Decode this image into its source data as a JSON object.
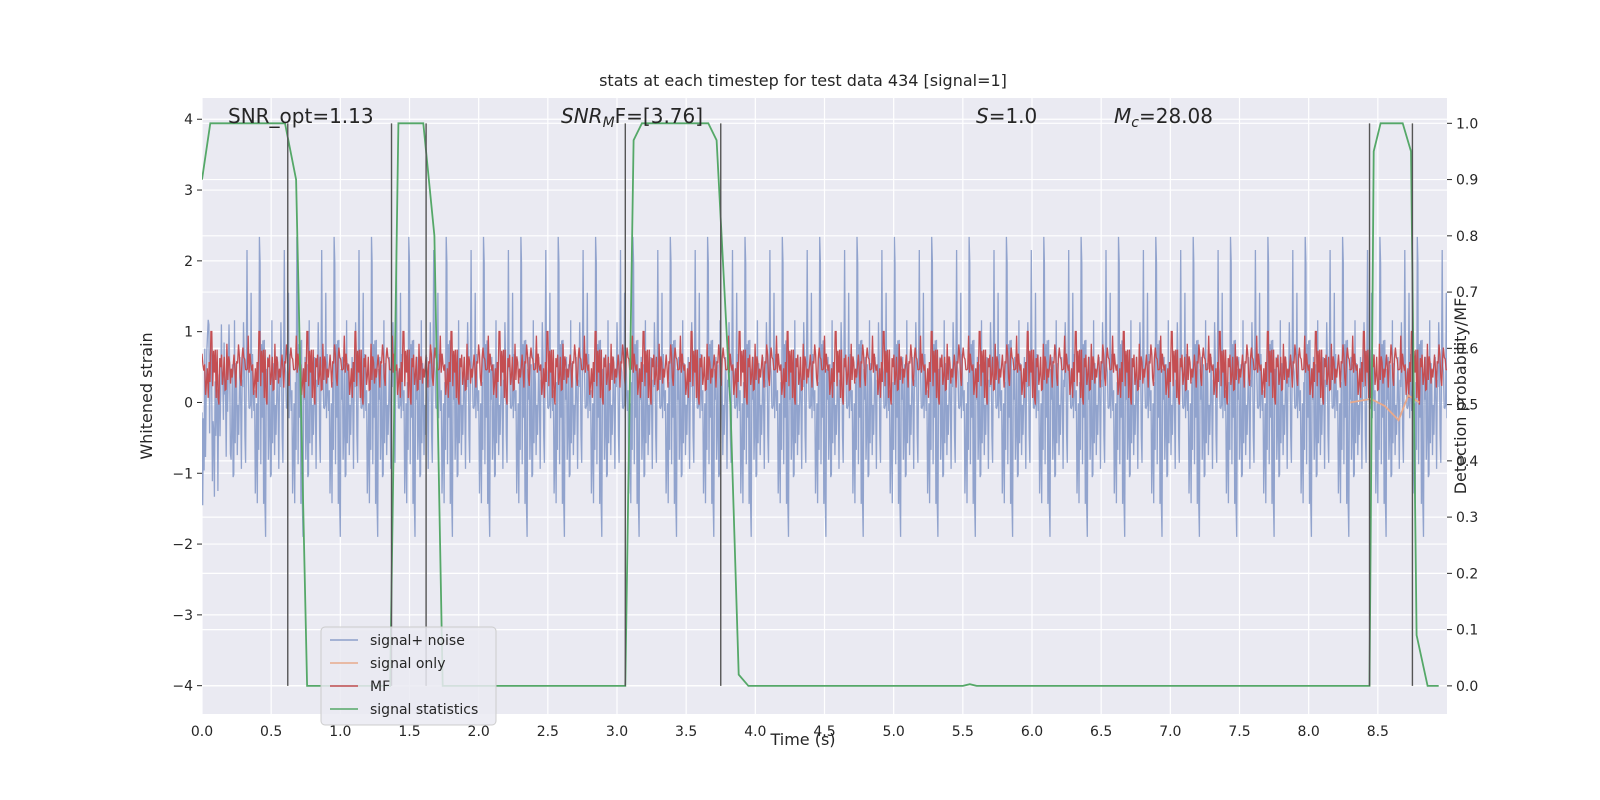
{
  "chart_data": {
    "type": "line",
    "title": "stats at each timestep for test data 434 [signal=1]",
    "xlabel": "Time (s)",
    "ylabel_left": "Whitened strain",
    "ylabel_right": "Detection probability/MF",
    "xlim": [
      0.0,
      9.0
    ],
    "ylim_left": [
      -4.4,
      4.3
    ],
    "ylim_right": [
      -0.05,
      1.045
    ],
    "x_ticks": [
      "0.0",
      "0.5",
      "1.0",
      "1.5",
      "2.0",
      "2.5",
      "3.0",
      "3.5",
      "4.0",
      "4.5",
      "5.0",
      "5.5",
      "6.0",
      "6.5",
      "7.0",
      "7.5",
      "8.0",
      "8.5"
    ],
    "y_left_ticks": [
      "4",
      "3",
      "2",
      "1",
      "0",
      "−1",
      "−2",
      "−3",
      "−4"
    ],
    "y_right_ticks": [
      "1.0",
      "0.9",
      "0.8",
      "0.7",
      "0.6",
      "0.5",
      "0.4",
      "0.3",
      "0.2",
      "0.1",
      "0.0"
    ],
    "grid": true,
    "legend_position": "lower-left",
    "annotations": {
      "snr_opt": "SNR_opt=1.13",
      "snr_mf_base": "SNR",
      "snr_mf_sub": "M",
      "snr_mf_rest": "F=[3.76]",
      "s_label": "S",
      "s_value": "=1.0",
      "mc_base": "M",
      "mc_sub": "c",
      "mc_value": "=28.08"
    },
    "series": [
      {
        "name": "signal+ noise",
        "color": "#8c9fca",
        "description_ranges": {
          "envelope_low": [
            -2.5,
            -1.5
          ],
          "envelope_high": [
            1.5,
            2.8
          ],
          "peak_range": [
            -4.0,
            3.6
          ]
        }
      },
      {
        "name": "signal only",
        "color": "#e8a98b",
        "points": [
          [
            8.3,
            0.0
          ],
          [
            8.45,
            0.05
          ],
          [
            8.55,
            -0.05
          ],
          [
            8.65,
            -0.25
          ],
          [
            8.72,
            0.1
          ],
          [
            8.8,
            0.0
          ]
        ]
      },
      {
        "name": "MF",
        "color": "#c44e52",
        "band_right_axis": [
          0.5,
          0.63
        ]
      },
      {
        "name": "signal statistics",
        "color": "#55a868",
        "points": [
          [
            0.0,
            0.9
          ],
          [
            0.06,
            1.0
          ],
          [
            0.6,
            1.0
          ],
          [
            0.68,
            0.9
          ],
          [
            0.76,
            0.0
          ],
          [
            1.36,
            0.0
          ],
          [
            1.42,
            1.0
          ],
          [
            1.48,
            1.0
          ],
          [
            1.6,
            1.0
          ],
          [
            1.68,
            0.8
          ],
          [
            1.74,
            0.0
          ],
          [
            3.06,
            0.0
          ],
          [
            3.12,
            0.97
          ],
          [
            3.18,
            1.0
          ],
          [
            3.66,
            1.0
          ],
          [
            3.72,
            0.97
          ],
          [
            3.82,
            0.5
          ],
          [
            3.88,
            0.02
          ],
          [
            3.95,
            0.0
          ],
          [
            5.5,
            0.0
          ],
          [
            5.55,
            0.003
          ],
          [
            5.6,
            0.0
          ],
          [
            8.44,
            0.0
          ],
          [
            8.47,
            0.95
          ],
          [
            8.52,
            1.0
          ],
          [
            8.68,
            1.0
          ],
          [
            8.74,
            0.95
          ],
          [
            8.78,
            0.09
          ],
          [
            8.86,
            0.0
          ],
          [
            8.94,
            0.0
          ]
        ]
      }
    ],
    "vertical_markers": [
      0.62,
      1.37,
      1.62,
      3.06,
      3.75,
      8.44,
      8.75
    ]
  }
}
